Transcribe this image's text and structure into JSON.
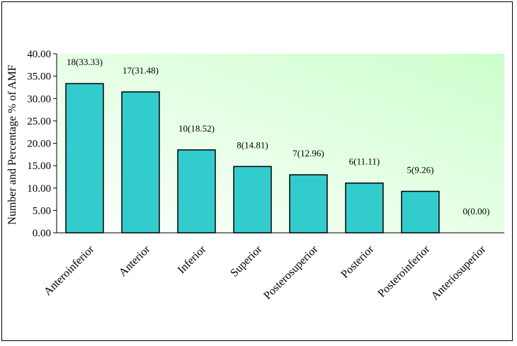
{
  "chart_data": {
    "type": "bar",
    "title": "",
    "xlabel": "",
    "ylabel": "Number and Percentage % of AMF",
    "ylim": [
      0,
      40
    ],
    "yticks": [
      "0.00",
      "5.00",
      "10.00",
      "15.00",
      "20.00",
      "25.00",
      "30.00",
      "35.00",
      "40.00"
    ],
    "categories": [
      "Anteroinferior",
      "Anterior",
      "Inferior",
      "Superior",
      "Posterosuperior",
      "Posterior",
      "Posteroinferior",
      "Anteriosuperior"
    ],
    "values": [
      33.33,
      31.48,
      18.52,
      14.81,
      12.96,
      11.11,
      9.26,
      0.0
    ],
    "data_labels": [
      "18(33.33)",
      "17(31.48)",
      "10(18.52)",
      "8(14.81)",
      "7(12.96)",
      "6(11.11)",
      "5(9.26)",
      "0(0.00)"
    ],
    "grid": false,
    "legend": "none",
    "colors": {
      "bar_fill": "#33CCCC",
      "bar_stroke": "#000000",
      "plot_bg_start": "#ffffff",
      "plot_bg_end": "#ccffcc"
    }
  }
}
